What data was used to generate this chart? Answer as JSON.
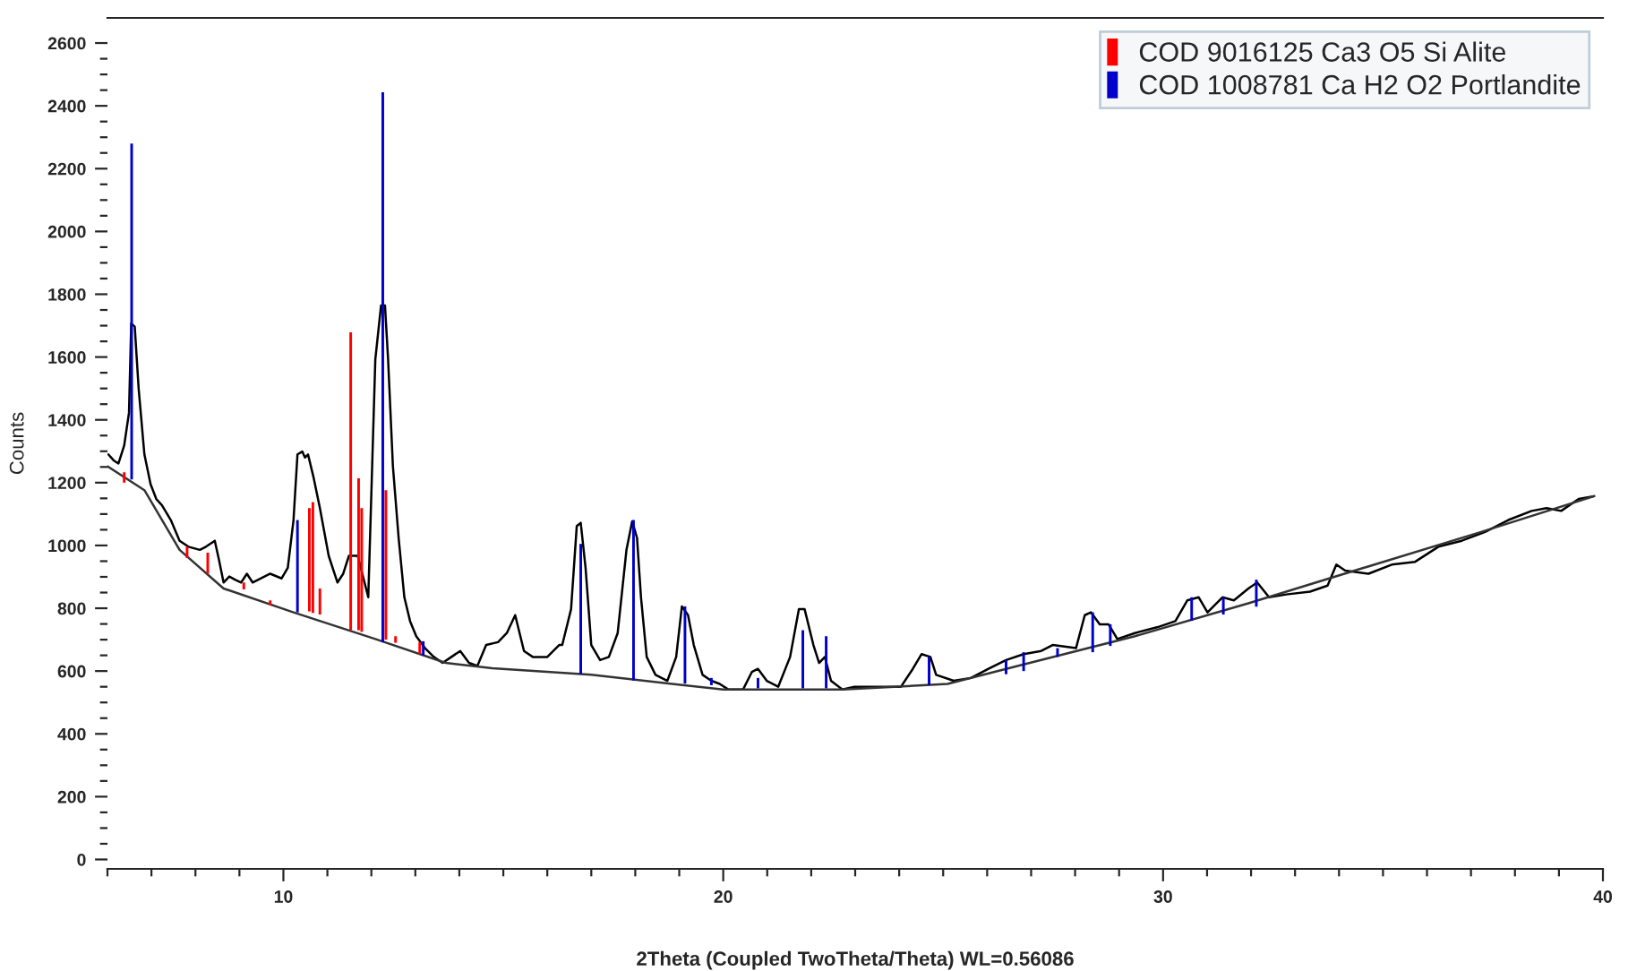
{
  "chart_data": {
    "type": "line",
    "xlabel": "2Theta (Coupled TwoTheta/Theta) WL=0.56086",
    "ylabel": "Counts",
    "xlim": [
      6,
      40
    ],
    "ylim": [
      -30,
      2680
    ],
    "xticks": [
      {
        "value": 6,
        "label": null
      },
      {
        "value": 7,
        "label": null
      },
      {
        "value": 8,
        "label": null
      },
      {
        "value": 9,
        "label": null
      },
      10,
      {
        "value": 11,
        "label": null
      },
      {
        "value": 12,
        "label": null
      },
      {
        "value": 13,
        "label": null
      },
      {
        "value": 14,
        "label": null
      },
      {
        "value": 15,
        "label": null
      },
      {
        "value": 16,
        "label": null
      },
      {
        "value": 17,
        "label": null
      },
      {
        "value": 18,
        "label": null
      },
      {
        "value": 19,
        "label": null
      },
      20,
      {
        "value": 21,
        "label": null
      },
      {
        "value": 22,
        "label": null
      },
      {
        "value": 23,
        "label": null
      },
      {
        "value": 24,
        "label": null
      },
      {
        "value": 25,
        "label": null
      },
      {
        "value": 26,
        "label": null
      },
      {
        "value": 27,
        "label": null
      },
      {
        "value": 28,
        "label": null
      },
      {
        "value": 29,
        "label": null
      },
      30,
      {
        "value": 31,
        "label": null
      },
      {
        "value": 32,
        "label": null
      },
      {
        "value": 33,
        "label": null
      },
      {
        "value": 34,
        "label": null
      },
      {
        "value": 35,
        "label": null
      },
      {
        "value": 36,
        "label": null
      },
      {
        "value": 37,
        "label": null
      },
      {
        "value": 38,
        "label": null
      },
      {
        "value": 39,
        "label": null
      },
      40
    ],
    "yticks": [
      0,
      {
        "value": 50,
        "label": null
      },
      {
        "value": 100,
        "label": null
      },
      {
        "value": 150,
        "label": null
      },
      200,
      {
        "value": 250,
        "label": null
      },
      {
        "value": 300,
        "label": null
      },
      {
        "value": 350,
        "label": null
      },
      400,
      {
        "value": 450,
        "label": null
      },
      {
        "value": 500,
        "label": null
      },
      {
        "value": 550,
        "label": null
      },
      600,
      {
        "value": 650,
        "label": null
      },
      {
        "value": 700,
        "label": null
      },
      {
        "value": 750,
        "label": null
      },
      800,
      {
        "value": 850,
        "label": null
      },
      {
        "value": 900,
        "label": null
      },
      {
        "value": 950,
        "label": null
      },
      1000,
      {
        "value": 1050,
        "label": null
      },
      {
        "value": 1100,
        "label": null
      },
      {
        "value": 1150,
        "label": null
      },
      1200,
      {
        "value": 1250,
        "label": null
      },
      {
        "value": 1300,
        "label": null
      },
      {
        "value": 1350,
        "label": null
      },
      1400,
      {
        "value": 1450,
        "label": null
      },
      {
        "value": 1500,
        "label": null
      },
      {
        "value": 1550,
        "label": null
      },
      1600,
      {
        "value": 1650,
        "label": null
      },
      {
        "value": 1700,
        "label": null
      },
      {
        "value": 1750,
        "label": null
      },
      1800,
      {
        "value": 1850,
        "label": null
      },
      {
        "value": 1900,
        "label": null
      },
      {
        "value": 1950,
        "label": null
      },
      2000,
      {
        "value": 2050,
        "label": null
      },
      {
        "value": 2100,
        "label": null
      },
      {
        "value": 2150,
        "label": null
      },
      2200,
      {
        "value": 2250,
        "label": null
      },
      {
        "value": 2300,
        "label": null
      },
      {
        "value": 2350,
        "label": null
      },
      2400,
      {
        "value": 2450,
        "label": null
      },
      {
        "value": 2500,
        "label": null
      },
      {
        "value": 2550,
        "label": null
      },
      2600
    ],
    "grid": false,
    "legend": "top right",
    "series": [
      {
        "color": "#000000",
        "x": [
          6.02,
          6.14,
          6.25,
          6.38,
          6.49,
          6.54,
          6.62,
          6.71,
          6.84,
          6.98,
          7.11,
          7.24,
          7.44,
          7.64,
          7.84,
          8.1,
          8.24,
          8.44,
          8.53,
          8.64,
          8.77,
          8.9,
          9.04,
          9.17,
          9.3,
          9.43,
          9.7,
          9.96,
          10.1,
          10.23,
          10.32,
          10.43,
          10.49,
          10.56,
          10.69,
          10.83,
          11.03,
          11.23,
          11.36,
          11.49,
          11.69,
          11.93,
          12.09,
          12.22,
          12.31,
          12.38,
          12.49,
          12.62,
          12.75,
          12.88,
          13.02,
          13.22,
          13.42,
          13.62,
          13.82,
          14.02,
          14.22,
          14.41,
          14.61,
          14.88,
          15.08,
          15.27,
          15.47,
          15.67,
          16.0,
          16.27,
          16.34,
          16.54,
          16.67,
          16.76,
          16.87,
          17.0,
          17.2,
          17.4,
          17.6,
          17.8,
          17.93,
          18.04,
          18.13,
          18.26,
          18.46,
          18.73,
          18.93,
          19.06,
          19.2,
          19.33,
          19.53,
          19.73,
          19.92,
          20.12,
          20.45,
          20.65,
          20.79,
          20.99,
          21.25,
          21.52,
          21.72,
          21.85,
          22.05,
          22.18,
          22.31,
          22.45,
          22.71,
          22.98,
          23.51,
          24.04,
          24.31,
          24.51,
          24.71,
          24.84,
          25.24,
          25.63,
          26.03,
          26.43,
          26.83,
          27.23,
          27.49,
          28.02,
          28.22,
          28.36,
          28.56,
          28.76,
          28.96,
          29.36,
          29.88,
          30.28,
          30.55,
          30.81,
          31.01,
          31.35,
          31.61,
          31.94,
          32.14,
          32.41,
          32.8,
          33.34,
          33.74,
          33.94,
          34.14,
          34.67,
          35.2,
          35.73,
          36.26,
          36.79,
          37.32,
          37.85,
          38.38,
          38.72,
          39.05,
          39.45,
          39.8
        ],
        "values": [
          1290,
          1271,
          1261,
          1318,
          1423,
          1707,
          1697,
          1498,
          1290,
          1195,
          1148,
          1128,
          1081,
          1015,
          996,
          986,
          996,
          1015,
          958,
          882,
          901,
          891,
          882,
          910,
          882,
          891,
          910,
          895,
          929,
          1081,
          1290,
          1299,
          1280,
          1290,
          1214,
          1119,
          967,
          882,
          910,
          967,
          967,
          835,
          1593,
          1764,
          1764,
          1593,
          1252,
          1024,
          835,
          759,
          711,
          673,
          645,
          626,
          645,
          664,
          626,
          616,
          683,
          692,
          721,
          778,
          664,
          645,
          645,
          683,
          683,
          797,
          1062,
          1072,
          929,
          683,
          635,
          645,
          721,
          986,
          1077,
          1024,
          835,
          645,
          588,
          569,
          645,
          806,
          778,
          683,
          588,
          569,
          559,
          541,
          541,
          597,
          607,
          569,
          550,
          645,
          797,
          797,
          683,
          626,
          645,
          569,
          541,
          550,
          550,
          550,
          607,
          654,
          645,
          588,
          569,
          578,
          607,
          635,
          654,
          664,
          683,
          673,
          778,
          787,
          749,
          749,
          702,
          721,
          740,
          759,
          825,
          835,
          787,
          835,
          825,
          863,
          882,
          835,
          844,
          853,
          872,
          939,
          920,
          910,
          939,
          948,
          996,
          1015,
          1043,
          1081,
          1110,
          1119,
          1110,
          1148,
          1157
        ]
      },
      {
        "color": "#333333",
        "x": [
          6.0,
          6.84,
          7.64,
          8.64,
          10.23,
          12.09,
          13.69,
          14.75,
          17.0,
          20.0,
          22.71,
          25.1,
          26.69,
          29.36,
          31.94,
          34.57,
          37.23,
          39.8
        ],
        "values": [
          1252,
          1176,
          986,
          863,
          787,
          702,
          626,
          609,
          588,
          541,
          541,
          559,
          616,
          711,
          816,
          929,
          1043,
          1157
        ]
      },
      {
        "type": "bar",
        "name": "COD 9016125 Ca3 O5 Si Alite",
        "color": "#ff0000",
        "x": [
          6.38,
          7.81,
          8.28,
          9.1,
          9.7,
          10.59,
          10.67,
          10.83,
          11.53,
          11.71,
          11.78,
          12.33,
          12.55,
          13.1
        ],
        "base": [
          1200,
          960,
          910,
          860,
          810,
          790,
          785,
          780,
          730,
          730,
          725,
          700,
          690,
          655
        ],
        "values": [
          33,
          36,
          67,
          22,
          15,
          329,
          353,
          83,
          949,
          484,
          394,
          476,
          21,
          37
        ]
      },
      {
        "type": "bar",
        "name": "COD 1008781 Ca H2 O2 Portlandite",
        "color": "#0000cc",
        "x": [
          6.55,
          10.32,
          12.26,
          13.18,
          16.76,
          17.96,
          19.13,
          19.73,
          20.79,
          21.81,
          22.34,
          24.68,
          26.43,
          26.83,
          27.6,
          28.4,
          28.8,
          30.65,
          31.37,
          32.12
        ],
        "base": [
          1210,
          787,
          692,
          650,
          590,
          570,
          560,
          555,
          545,
          545,
          545,
          555,
          590,
          600,
          645,
          660,
          680,
          760,
          780,
          805
        ],
        "values": [
          1070,
          294,
          1751,
          45,
          415,
          511,
          246,
          23,
          33,
          185,
          166,
          90,
          45,
          60,
          28,
          127,
          69,
          75,
          55,
          86
        ]
      }
    ]
  }
}
